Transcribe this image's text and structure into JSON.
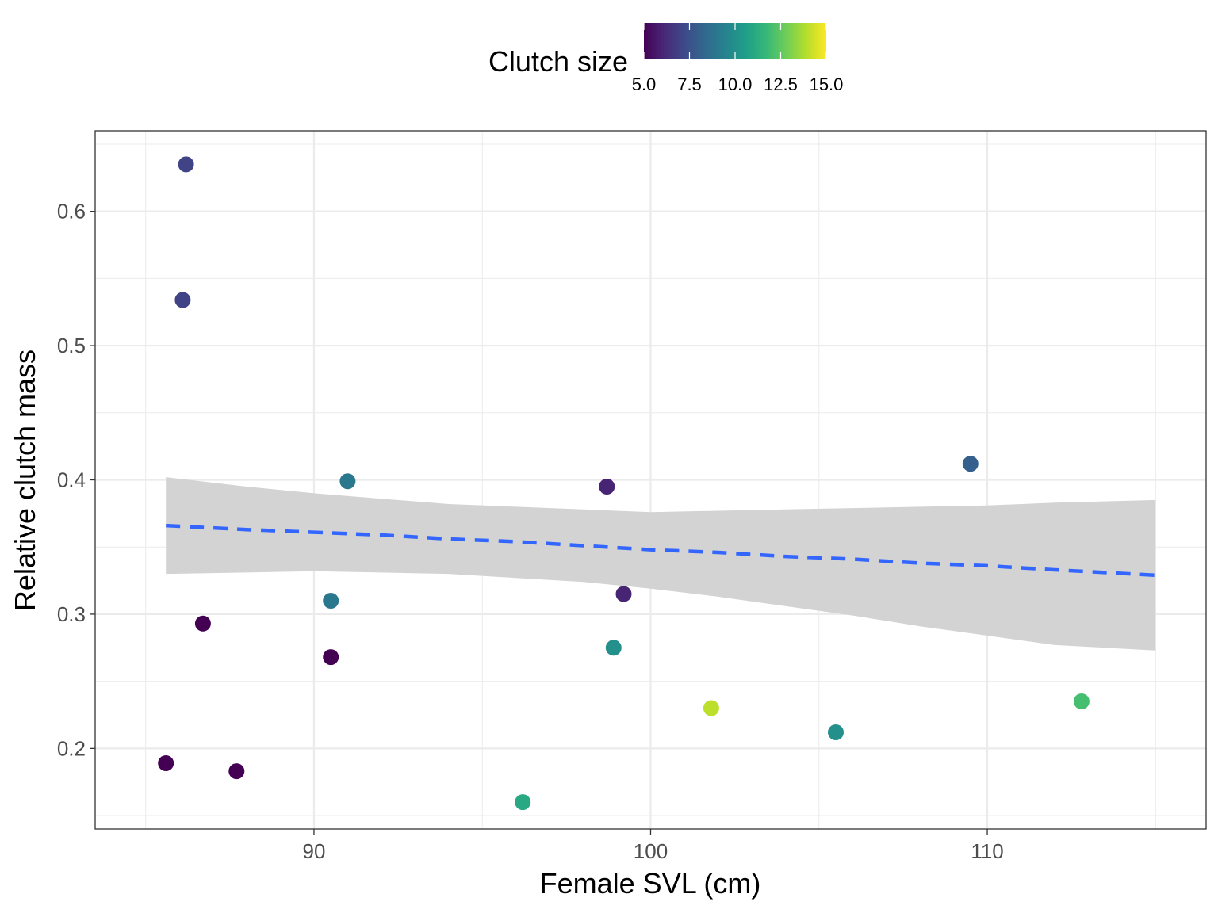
{
  "chart_data": {
    "type": "scatter",
    "xlabel": "Female SVL (cm)",
    "ylabel": "Relative clutch mass",
    "xlim": [
      83.5,
      116.5
    ],
    "ylim": [
      0.14,
      0.66
    ],
    "x_ticks": [
      90,
      100,
      110
    ],
    "x_tick_labels": [
      "90",
      "100",
      "110"
    ],
    "x_minor_ticks": [
      85,
      95,
      105,
      115
    ],
    "y_ticks": [
      0.2,
      0.3,
      0.4,
      0.5,
      0.6
    ],
    "y_tick_labels": [
      "0.2",
      "0.3",
      "0.4",
      "0.5",
      "0.6"
    ],
    "y_minor_ticks": [
      0.15,
      0.25,
      0.35,
      0.45,
      0.55,
      0.65
    ],
    "grid": true,
    "legend": {
      "title": "Clutch size",
      "position": "top",
      "type": "colorbar",
      "min": 5,
      "max": 15,
      "ticks": [
        5,
        7.5,
        10,
        12.5,
        15
      ],
      "tick_labels": [
        "5.0",
        "7.5",
        "10.0",
        "12.5",
        "15.0"
      ],
      "palette": [
        "#440154",
        "#482878",
        "#3E4A89",
        "#31688E",
        "#26828E",
        "#1F9E89",
        "#35B779",
        "#6DCD59",
        "#B4DE2C",
        "#FDE725"
      ]
    },
    "points": [
      {
        "x": 86.2,
        "y": 0.635,
        "clutch_size": 7
      },
      {
        "x": 86.1,
        "y": 0.534,
        "clutch_size": 7
      },
      {
        "x": 86.7,
        "y": 0.293,
        "clutch_size": 5
      },
      {
        "x": 85.6,
        "y": 0.189,
        "clutch_size": 5
      },
      {
        "x": 87.7,
        "y": 0.183,
        "clutch_size": 5
      },
      {
        "x": 90.5,
        "y": 0.268,
        "clutch_size": 5
      },
      {
        "x": 90.5,
        "y": 0.31,
        "clutch_size": 9
      },
      {
        "x": 91.0,
        "y": 0.399,
        "clutch_size": 9
      },
      {
        "x": 96.2,
        "y": 0.16,
        "clutch_size": 11
      },
      {
        "x": 98.7,
        "y": 0.395,
        "clutch_size": 6
      },
      {
        "x": 99.2,
        "y": 0.315,
        "clutch_size": 6
      },
      {
        "x": 98.9,
        "y": 0.275,
        "clutch_size": 10
      },
      {
        "x": 101.8,
        "y": 0.23,
        "clutch_size": 14
      },
      {
        "x": 105.5,
        "y": 0.212,
        "clutch_size": 10
      },
      {
        "x": 109.5,
        "y": 0.412,
        "clutch_size": 8
      },
      {
        "x": 112.8,
        "y": 0.235,
        "clutch_size": 12
      }
    ],
    "trend": {
      "x": [
        85.6,
        88,
        90,
        92,
        94,
        96,
        98,
        100,
        102,
        104,
        106,
        108,
        110,
        112,
        115
      ],
      "y": [
        0.366,
        0.363,
        0.361,
        0.359,
        0.356,
        0.354,
        0.351,
        0.348,
        0.346,
        0.343,
        0.341,
        0.338,
        0.336,
        0.333,
        0.329
      ],
      "lower": [
        0.33,
        0.331,
        0.332,
        0.331,
        0.33,
        0.327,
        0.324,
        0.319,
        0.313,
        0.306,
        0.299,
        0.291,
        0.284,
        0.277,
        0.273
      ],
      "upper": [
        0.402,
        0.395,
        0.39,
        0.386,
        0.382,
        0.38,
        0.378,
        0.376,
        0.377,
        0.378,
        0.379,
        0.38,
        0.381,
        0.383,
        0.385
      ],
      "line_color": "#3366FF",
      "band_color": "#D3D3D3"
    }
  }
}
